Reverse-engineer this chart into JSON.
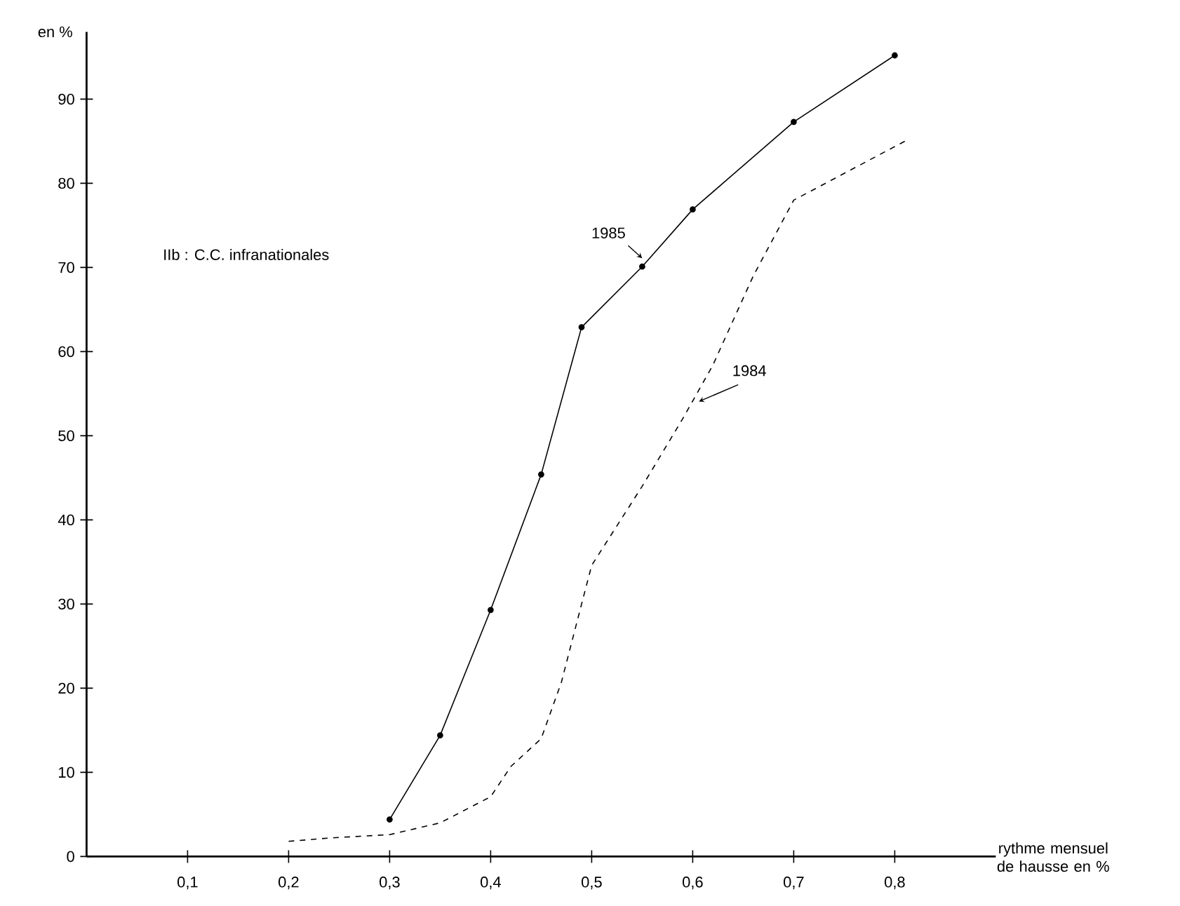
{
  "chart_data": {
    "type": "line",
    "xlabel": "rythme mensuel de hausse en %",
    "ylabel": "en %",
    "annotations": [
      "IIb : C.C. infranationales"
    ],
    "xlim": [
      0,
      0.9
    ],
    "ylim": [
      0,
      98
    ],
    "xticks": [
      {
        "value": 0.1,
        "label": "0,1"
      },
      {
        "value": 0.2,
        "label": "0,2"
      },
      {
        "value": 0.3,
        "label": "0,3"
      },
      {
        "value": 0.4,
        "label": "0,4"
      },
      {
        "value": 0.5,
        "label": "0,5"
      },
      {
        "value": 0.6,
        "label": "0,6"
      },
      {
        "value": 0.7,
        "label": "0,7"
      },
      {
        "value": 0.8,
        "label": "0,8"
      }
    ],
    "yticks": [
      0,
      10,
      20,
      30,
      40,
      50,
      60,
      70,
      80,
      90
    ],
    "grid": false,
    "legend": false,
    "series": [
      {
        "name": "1985",
        "color": "#000000",
        "marker": "circle",
        "line_style": "solid",
        "x": [
          0.3,
          0.35,
          0.4,
          0.45,
          0.49,
          0.55,
          0.6,
          0.7,
          0.8
        ],
        "values": [
          4.4,
          14.4,
          29.3,
          45.4,
          62.9,
          70.1,
          76.9,
          87.3,
          95.2
        ]
      },
      {
        "name": "1984",
        "color": "#000000",
        "marker": "none",
        "line_style": "dashed",
        "x": [
          0.2,
          0.24,
          0.3,
          0.35,
          0.4,
          0.42,
          0.45,
          0.47,
          0.49,
          0.5,
          0.55,
          0.59,
          0.62,
          0.66,
          0.7,
          0.81
        ],
        "values": [
          1.8,
          2.2,
          2.6,
          4.0,
          7.1,
          10.7,
          14.0,
          20.7,
          30.0,
          34.6,
          44.0,
          52.0,
          58.4,
          69.0,
          78.0,
          85.0
        ]
      }
    ]
  }
}
